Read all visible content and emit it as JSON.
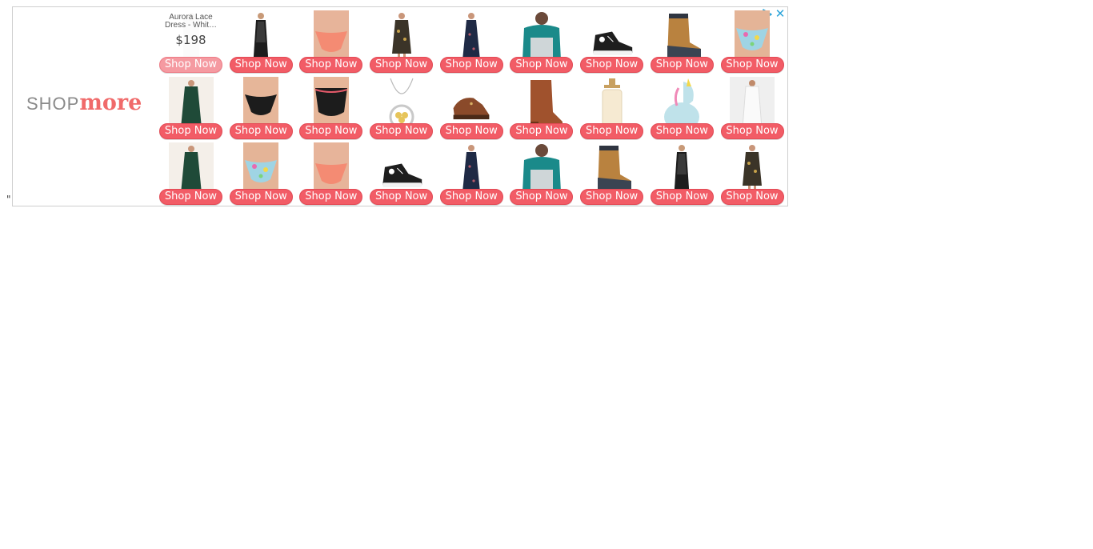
{
  "stray_text": "\"",
  "ad": {
    "logo": {
      "shop": "SHOP",
      "more": "more"
    },
    "adchoices_icon": "adchoices-triangle-icon",
    "close_icon": "close-icon",
    "close_glyph": "✕",
    "colors": {
      "accent": "#f25c66",
      "logo_gray": "#8a8a8a",
      "adchoices_blue": "#2aa3d9"
    },
    "featured": {
      "name": "Aurora Lace Dress - Whit…",
      "price": "$198"
    },
    "button_label": "Shop Now",
    "rows": [
      [
        {
          "product": "aurora-lace-dress",
          "featured": true
        },
        {
          "product": "black-lace-maxi-dress"
        },
        {
          "product": "coral-bikini-bottom"
        },
        {
          "product": "floral-mini-dress"
        },
        {
          "product": "navy-floral-maxi-dress"
        },
        {
          "product": "teal-color-block-sweater"
        },
        {
          "product": "black-high-top-sneaker"
        },
        {
          "product": "duck-boot-tan"
        },
        {
          "product": "printed-bikini-bottom"
        }
      ],
      [
        {
          "product": "green-maxi-dress"
        },
        {
          "product": "black-bikini-bottom"
        },
        {
          "product": "black-high-waist-bikini"
        },
        {
          "product": "gold-pendant-necklace"
        },
        {
          "product": "brown-leather-clog"
        },
        {
          "product": "cognac-ankle-boot"
        },
        {
          "product": "glass-soap-dispenser"
        },
        {
          "product": "inflatable-unicorn"
        },
        {
          "product": "white-lace-dress"
        }
      ],
      [
        {
          "product": "green-maxi-dress"
        },
        {
          "product": "printed-bikini-bottom"
        },
        {
          "product": "coral-bikini-bottom"
        },
        {
          "product": "black-high-top-sneaker"
        },
        {
          "product": "navy-floral-maxi-dress"
        },
        {
          "product": "teal-color-block-sweater"
        },
        {
          "product": "duck-boot-tan"
        },
        {
          "product": "black-lace-maxi-dress"
        },
        {
          "product": "floral-mini-dress"
        }
      ]
    ]
  }
}
